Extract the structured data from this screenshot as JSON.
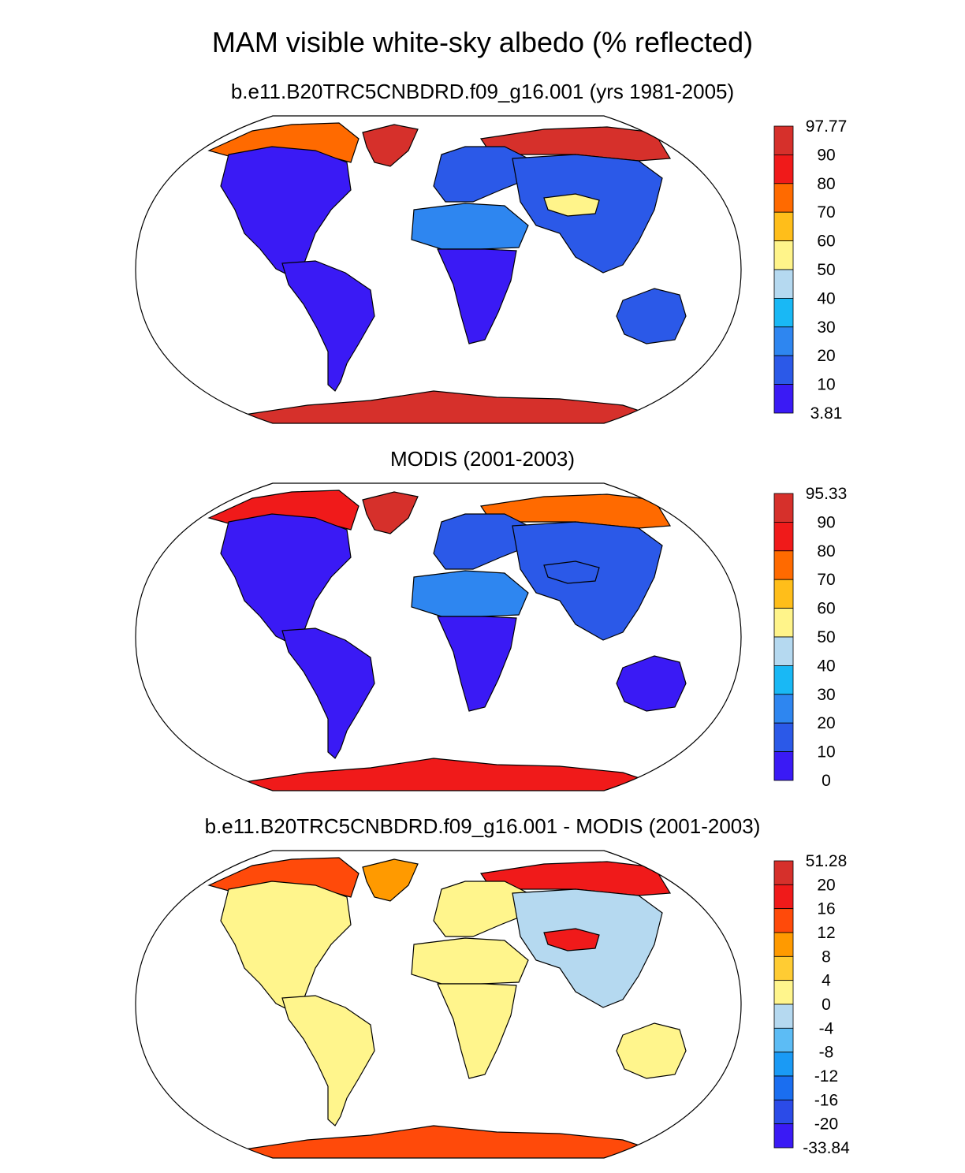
{
  "figure": {
    "title": "MAM visible white-sky albedo (% reflected)"
  },
  "colors": {
    "ocean": "#ffffff",
    "outline": "#000000",
    "coast": "#000000"
  },
  "chart_data": [
    {
      "type": "heatmap",
      "title": "b.e11.B20TRC5CNBDRD.f09_g16.001 (yrs 1981-2005)",
      "projection": "Robinson",
      "colorbar": {
        "labels": [
          "97.77",
          "90",
          "80",
          "70",
          "60",
          "50",
          "40",
          "30",
          "20",
          "10",
          "3.81"
        ],
        "colors": [
          "#d6302b",
          "#f01a1a",
          "#ff6a00",
          "#ffbe1a",
          "#fff48a",
          "#b5d9f0",
          "#19b8f5",
          "#2e86f0",
          "#2b59e8",
          "#3a1af5"
        ]
      },
      "regions": [
        {
          "name": "Greenland",
          "color": "#d6302b"
        },
        {
          "name": "Antarctica",
          "color": "#d6302b"
        },
        {
          "name": "Siberian Arctic",
          "color": "#d6302b"
        },
        {
          "name": "Canadian Arctic",
          "color": "#ff6a00"
        },
        {
          "name": "North America",
          "color": "#3a1af5"
        },
        {
          "name": "South America",
          "color": "#3a1af5"
        },
        {
          "name": "Europe",
          "color": "#2b59e8"
        },
        {
          "name": "Asia",
          "color": "#2b59e8"
        },
        {
          "name": "Sahara and Arabia",
          "color": "#2e86f0"
        },
        {
          "name": "Southern Africa",
          "color": "#3a1af5"
        },
        {
          "name": "Australia",
          "color": "#2b59e8"
        },
        {
          "name": "Tibet",
          "color": "#fff48a"
        }
      ]
    },
    {
      "type": "heatmap",
      "title": "MODIS (2001-2003)",
      "projection": "Robinson",
      "colorbar": {
        "labels": [
          "95.33",
          "90",
          "80",
          "70",
          "60",
          "50",
          "40",
          "30",
          "20",
          "10",
          "0"
        ],
        "colors": [
          "#d6302b",
          "#f01a1a",
          "#ff6a00",
          "#ffbe1a",
          "#fff48a",
          "#b5d9f0",
          "#19b8f5",
          "#2e86f0",
          "#2b59e8",
          "#3a1af5"
        ]
      },
      "regions": [
        {
          "name": "Greenland",
          "color": "#d6302b"
        },
        {
          "name": "Antarctica",
          "color": "#f01a1a"
        },
        {
          "name": "Siberian Arctic",
          "color": "#ff6a00"
        },
        {
          "name": "Canadian Arctic",
          "color": "#f01a1a"
        },
        {
          "name": "North America",
          "color": "#3a1af5"
        },
        {
          "name": "South America",
          "color": "#3a1af5"
        },
        {
          "name": "Europe",
          "color": "#2b59e8"
        },
        {
          "name": "Asia",
          "color": "#2b59e8"
        },
        {
          "name": "Sahara and Arabia",
          "color": "#2e86f0"
        },
        {
          "name": "Southern Africa",
          "color": "#3a1af5"
        },
        {
          "name": "Australia",
          "color": "#3a1af5"
        },
        {
          "name": "Tibet",
          "color": "#2b59e8"
        }
      ]
    },
    {
      "type": "heatmap",
      "title": "b.e11.B20TRC5CNBDRD.f09_g16.001 - MODIS (2001-2003)",
      "projection": "Robinson",
      "colorbar": {
        "labels": [
          "51.28",
          "20",
          "16",
          "12",
          "8",
          "4",
          "0",
          "-4",
          "-8",
          "-12",
          "-16",
          "-20",
          "-33.84"
        ],
        "colors": [
          "#d6302b",
          "#f01a1a",
          "#ff4a0a",
          "#ff9a00",
          "#ffcc33",
          "#fff58c",
          "#b5d9f0",
          "#5cbcf5",
          "#1a9af5",
          "#1a6ef0",
          "#2b4be8",
          "#3a1af5"
        ]
      },
      "regions": [
        {
          "name": "Greenland",
          "color": "#ff9a00"
        },
        {
          "name": "Antarctica",
          "color": "#ff4a0a"
        },
        {
          "name": "Siberian Arctic",
          "color": "#f01a1a"
        },
        {
          "name": "Canadian Arctic",
          "color": "#ff4a0a"
        },
        {
          "name": "North America",
          "color": "#fff58c"
        },
        {
          "name": "South America",
          "color": "#fff58c"
        },
        {
          "name": "Europe",
          "color": "#fff58c"
        },
        {
          "name": "Asia",
          "color": "#b5d9f0"
        },
        {
          "name": "Sahara and Arabia",
          "color": "#fff58c"
        },
        {
          "name": "Southern Africa",
          "color": "#fff58c"
        },
        {
          "name": "Australia",
          "color": "#fff58c"
        },
        {
          "name": "Tibet",
          "color": "#f01a1a"
        }
      ]
    }
  ]
}
